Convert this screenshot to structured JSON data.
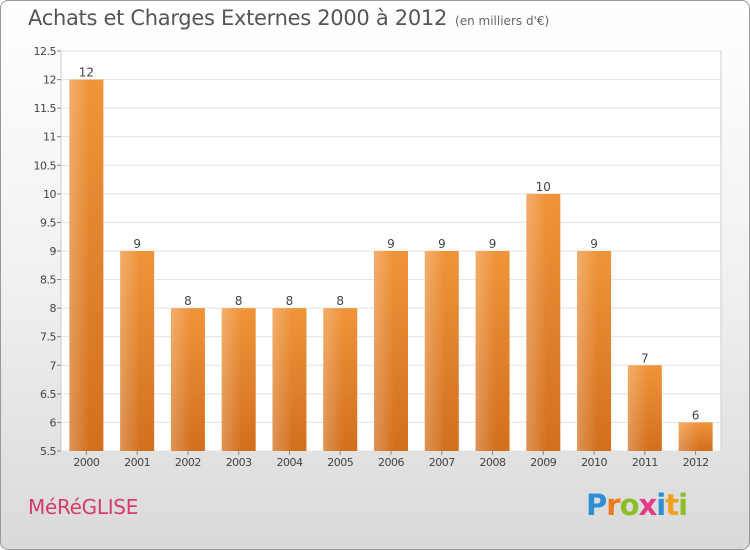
{
  "header": {
    "title": "Achats et Charges Externes 2000 à 2012",
    "subtitle": "(en milliers d'€)"
  },
  "footer": {
    "place_name": "MéRéGLISE",
    "logo_letters": [
      {
        "ch": "P",
        "color": "#2e8fd4"
      },
      {
        "ch": "r",
        "color": "#f07a1e"
      },
      {
        "ch": "o",
        "color": "#8bbf2a"
      },
      {
        "ch": "x",
        "color": "#e53a86"
      },
      {
        "ch": "i",
        "color": "#2e8fd4"
      },
      {
        "ch": "t",
        "color": "#f0a21e"
      },
      {
        "ch": "i",
        "color": "#8bbf2a"
      }
    ]
  },
  "chart_data": {
    "type": "bar",
    "categories": [
      "2000",
      "2001",
      "2002",
      "2003",
      "2004",
      "2005",
      "2006",
      "2007",
      "2008",
      "2009",
      "2010",
      "2011",
      "2012"
    ],
    "values": [
      12,
      9,
      8,
      8,
      8,
      8,
      9,
      9,
      9,
      10,
      9,
      7,
      6
    ],
    "value_labels": [
      "12",
      "9",
      "8",
      "8",
      "8",
      "8",
      "9",
      "9",
      "9",
      "10",
      "9",
      "7",
      "6"
    ],
    "ylim": [
      5.5,
      12.5
    ],
    "yticks": [
      5.5,
      6,
      6.5,
      7,
      7.5,
      8,
      8.5,
      9,
      9.5,
      10,
      10.5,
      11,
      11.5,
      12,
      12.5
    ],
    "ytick_labels": [
      "5.5",
      "6",
      "6.5",
      "7",
      "7.5",
      "8",
      "8.5",
      "9",
      "9.5",
      "10",
      "10.5",
      "11",
      "11.5",
      "12",
      "12.5"
    ],
    "grid": true,
    "bar_color": "#f0943a",
    "bar_color_dark": "#d26f1d"
  }
}
